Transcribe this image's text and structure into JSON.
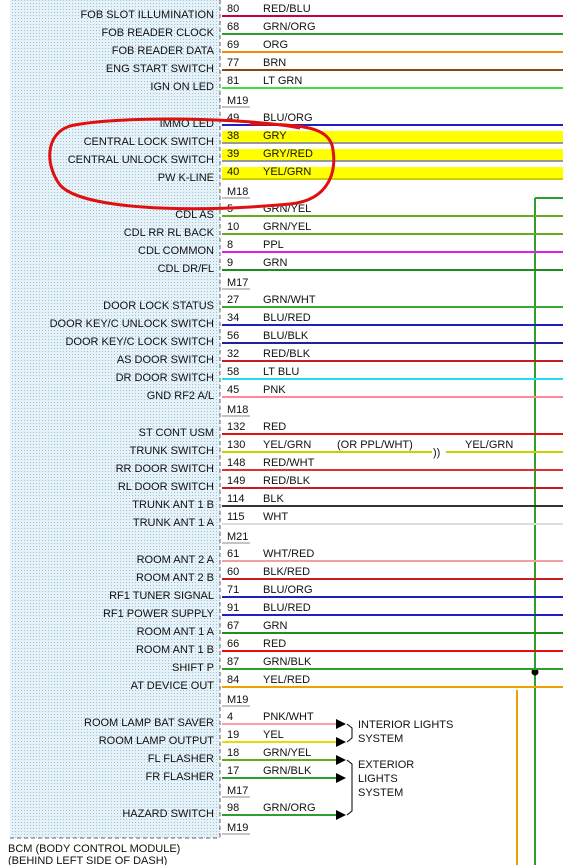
{
  "groups": [
    {
      "connector": "M19",
      "rows": [
        {
          "label": "FOB SLOT ILLUMINATION",
          "pin": "80",
          "wire": "RED/BLU",
          "color": "#c8003c"
        },
        {
          "label": "FOB READER CLOCK",
          "pin": "68",
          "wire": "GRN/ORG",
          "color": "#2e9e2e"
        },
        {
          "label": "FOB READER DATA",
          "pin": "69",
          "wire": "ORG",
          "color": "#f08c00"
        },
        {
          "label": "ENG START SWITCH",
          "pin": "77",
          "wire": "BRN",
          "color": "#8b4513"
        },
        {
          "label": "IGN ON LED",
          "pin": "81",
          "wire": "LT GRN",
          "color": "#44dd44"
        }
      ]
    },
    {
      "connector": "M18",
      "rows": [
        {
          "label": "IMMO LED",
          "pin": "49",
          "wire": "BLU/ORG",
          "color": "#2020c0"
        },
        {
          "label": "CENTRAL LOCK SWITCH",
          "pin": "38",
          "wire": "GRY",
          "color": "#999999",
          "highlight": true
        },
        {
          "label": "CENTRAL UNLOCK SWITCH",
          "pin": "39",
          "wire": "GRY/RED",
          "color": "#999999",
          "highlight": true
        },
        {
          "label": "PW K-LINE",
          "pin": "40",
          "wire": "YEL/GRN",
          "color": "#cccc00",
          "highlight": true
        }
      ]
    },
    {
      "connector": "M17",
      "rows": [
        {
          "label": "CDL AS",
          "pin": "5",
          "wire": "GRN/YEL",
          "color": "#66aa22"
        },
        {
          "label": "CDL RR RL BACK",
          "pin": "10",
          "wire": "GRN/YEL",
          "color": "#66aa22"
        },
        {
          "label": "CDL COMMON",
          "pin": "8",
          "wire": "PPL",
          "color": "#e020e0"
        },
        {
          "label": "CDL DR/FL",
          "pin": "9",
          "wire": "GRN",
          "color": "#1e8c1e"
        }
      ]
    },
    {
      "connector": "M18",
      "rows": [
        {
          "label": "DOOR LOCK STATUS",
          "pin": "27",
          "wire": "GRN/WHT",
          "color": "#3aa63a"
        },
        {
          "label": "DOOR KEY/C UNLOCK SWITCH",
          "pin": "34",
          "wire": "BLU/RED",
          "color": "#2020c0"
        },
        {
          "label": "DOOR KEY/C LOCK SWITCH",
          "pin": "56",
          "wire": "BLU/BLK",
          "color": "#2020a0"
        },
        {
          "label": "AS DOOR SWITCH",
          "pin": "32",
          "wire": "RED/BLK",
          "color": "#c02020"
        },
        {
          "label": "DR DOOR SWITCH",
          "pin": "58",
          "wire": "LT BLU",
          "color": "#20e0f0"
        },
        {
          "label": "GND RF2 A/L",
          "pin": "45",
          "wire": "PNK",
          "color": "#ff8899"
        }
      ]
    },
    {
      "connector": "M21",
      "rows": [
        {
          "label": "ST CONT USM",
          "pin": "132",
          "wire": "RED",
          "color": "#e01010"
        },
        {
          "label": "TRUNK SWITCH",
          "pin": "130",
          "wire": "YEL/GRN",
          "color": "#cccc00",
          "alt": "(OR PPL/WHT)",
          "wire2": "YEL/GRN"
        },
        {
          "label": "RR DOOR SWITCH",
          "pin": "148",
          "wire": "RED/WHT",
          "color": "#e03030"
        },
        {
          "label": "RL DOOR SWITCH",
          "pin": "149",
          "wire": "RED/BLK",
          "color": "#c02020"
        },
        {
          "label": "TRUNK ANT 1 B",
          "pin": "114",
          "wire": "BLK",
          "color": "#333333"
        },
        {
          "label": "TRUNK ANT 1 A",
          "pin": "115",
          "wire": "WHT",
          "color": "#dddddd"
        }
      ]
    },
    {
      "connector": "M19",
      "rows": [
        {
          "label": "ROOM ANT 2 A",
          "pin": "61",
          "wire": "WHT/RED",
          "color": "#f0a0a0"
        },
        {
          "label": "ROOM ANT 2 B",
          "pin": "60",
          "wire": "BLK/RED",
          "color": "#c02020"
        },
        {
          "label": "RF1 TUNER SIGNAL",
          "pin": "71",
          "wire": "BLU/ORG",
          "color": "#2020c0"
        },
        {
          "label": "RF1 POWER SUPPLY",
          "pin": "91",
          "wire": "BLU/RED",
          "color": "#2020c0"
        },
        {
          "label": "ROOM ANT 1 A",
          "pin": "67",
          "wire": "GRN",
          "color": "#1e8c1e"
        },
        {
          "label": "ROOM ANT 1 B",
          "pin": "66",
          "wire": "RED",
          "color": "#e01010"
        },
        {
          "label": "SHIFT P",
          "pin": "87",
          "wire": "GRN/BLK",
          "color": "#2e9e2e"
        },
        {
          "label": "AT DEVICE OUT",
          "pin": "84",
          "wire": "YEL/RED",
          "color": "#f0a000"
        }
      ]
    },
    {
      "connector": "M17",
      "rows": [
        {
          "label": "ROOM LAMP BAT SAVER",
          "pin": "4",
          "wire": "PNK/WHT",
          "color": "#ff9aa8",
          "arrow": true
        },
        {
          "label": "ROOM LAMP OUTPUT",
          "pin": "19",
          "wire": "YEL",
          "color": "#e0e000",
          "arrow": true
        },
        {
          "label": "FL FLASHER",
          "pin": "18",
          "wire": "GRN/YEL",
          "color": "#66aa22",
          "arrow": true
        },
        {
          "label": "FR FLASHER",
          "pin": "17",
          "wire": "GRN/BLK",
          "color": "#2e9e2e",
          "arrow": true
        }
      ]
    },
    {
      "connector": "M19",
      "rows": [
        {
          "label": "HAZARD SWITCH",
          "pin": "98",
          "wire": "GRN/ORG",
          "color": "#2e9e2e",
          "arrow": true
        }
      ]
    }
  ],
  "systems": [
    [
      "INTERIOR LIGHTS",
      "SYSTEM"
    ],
    [
      "EXTERIOR",
      "LIGHTS",
      "SYSTEM"
    ]
  ],
  "footer": [
    "BCM (BODY CONTROL MODULE)",
    "(BEHIND LEFT SIDE OF DASH)"
  ]
}
